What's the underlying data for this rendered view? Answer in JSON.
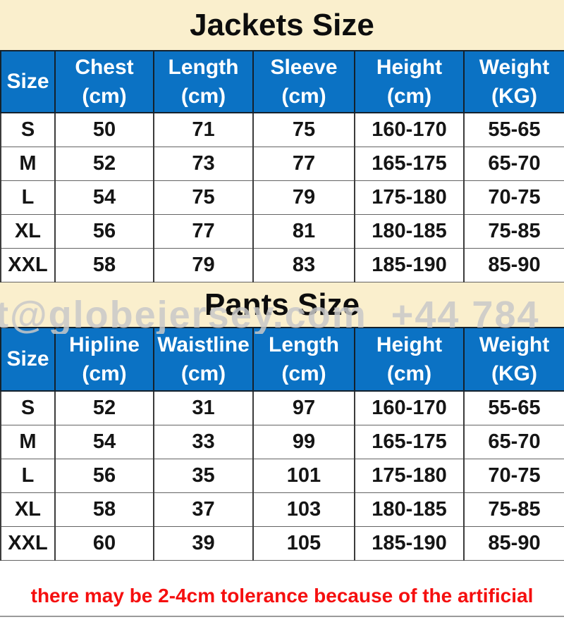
{
  "jackets": {
    "title": "Jackets Size",
    "columns": [
      {
        "label": "Size",
        "unit": ""
      },
      {
        "label": "Chest",
        "unit": "(cm)"
      },
      {
        "label": "Length",
        "unit": "(cm)"
      },
      {
        "label": "Sleeve",
        "unit": "(cm)"
      },
      {
        "label": "Height",
        "unit": "(cm)"
      },
      {
        "label": "Weight",
        "unit": "(KG)"
      }
    ],
    "rows": [
      [
        "S",
        "50",
        "71",
        "75",
        "160-170",
        "55-65"
      ],
      [
        "M",
        "52",
        "73",
        "77",
        "165-175",
        "65-70"
      ],
      [
        "L",
        "54",
        "75",
        "79",
        "175-180",
        "70-75"
      ],
      [
        "XL",
        "56",
        "77",
        "81",
        "180-185",
        "75-85"
      ],
      [
        "XXL",
        "58",
        "79",
        "83",
        "185-190",
        "85-90"
      ]
    ]
  },
  "pants": {
    "title": "Pants Size",
    "columns": [
      {
        "label": "Size",
        "unit": ""
      },
      {
        "label": "Hipline",
        "unit": "(cm)"
      },
      {
        "label": "Waistline",
        "unit": "(cm)"
      },
      {
        "label": "Length",
        "unit": "(cm)"
      },
      {
        "label": "Height",
        "unit": "(cm)"
      },
      {
        "label": "Weight",
        "unit": "(KG)"
      }
    ],
    "rows": [
      [
        "S",
        "52",
        "31",
        "97",
        "160-170",
        "55-65"
      ],
      [
        "M",
        "54",
        "33",
        "99",
        "165-175",
        "65-70"
      ],
      [
        "L",
        "56",
        "35",
        "101",
        "175-180",
        "70-75"
      ],
      [
        "XL",
        "58",
        "37",
        "103",
        "180-185",
        "75-85"
      ],
      [
        "XXL",
        "60",
        "39",
        "105",
        "185-190",
        "85-90"
      ]
    ]
  },
  "watermark": {
    "text": "t@globejersey.com  +44 784"
  },
  "footer": {
    "note": "there may be 2-4cm tolerance because of the artificial"
  },
  "colors": {
    "header_blue": "#0B72C4",
    "band_cream": "#FAEFCD",
    "note_red": "#F50F0F",
    "watermark_gray": "#C8C8C8"
  }
}
